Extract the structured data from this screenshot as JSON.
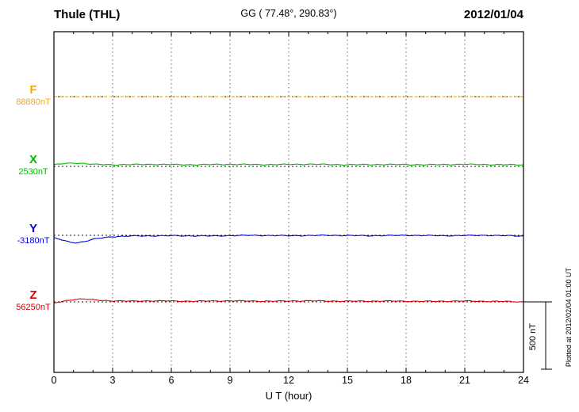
{
  "header": {
    "station": "Thule (THL)",
    "coordinates": "GG ( 77.48°, 290.83°)",
    "date": "2012/01/04"
  },
  "axis": {
    "xlabel": "U T (hour)"
  },
  "scale_bar": {
    "label": "500 nT"
  },
  "plot_note": "Plotted at 2012/02/04 01:00 UT",
  "chart_data": {
    "type": "line",
    "title": "Thule (THL) magnetogram 2012/01/04",
    "xlabel": "U T (hour)",
    "x_range": [
      0,
      24
    ],
    "x_ticks": [
      0,
      3,
      6,
      9,
      12,
      15,
      18,
      21,
      24
    ],
    "grid": "vertical dotted every 3 hours",
    "scale_bar_nT": 500,
    "series": [
      {
        "name": "F",
        "baseline_label": "88880nT",
        "baseline_nT": 88880,
        "color": "#FFA500",
        "line_style": "dashed",
        "noise_nT": 1,
        "points": [
          [
            0,
            0
          ],
          [
            12,
            0
          ],
          [
            24,
            0
          ]
        ]
      },
      {
        "name": "X",
        "baseline_label": "2530nT",
        "baseline_nT": 2530,
        "color": "#00BB00",
        "line_style": "solid",
        "noise_nT": 4,
        "points": [
          [
            0,
            12
          ],
          [
            0.5,
            20
          ],
          [
            1,
            25
          ],
          [
            1.5,
            22
          ],
          [
            2,
            15
          ],
          [
            3,
            12
          ],
          [
            5,
            15
          ],
          [
            7,
            12
          ],
          [
            9,
            15
          ],
          [
            11,
            13
          ],
          [
            13,
            16
          ],
          [
            15,
            12
          ],
          [
            17,
            14
          ],
          [
            19,
            12
          ],
          [
            21,
            15
          ],
          [
            23,
            12
          ],
          [
            24,
            12
          ]
        ]
      },
      {
        "name": "Y",
        "baseline_label": "-3180nT",
        "baseline_nT": -3180,
        "color": "#0000DD",
        "line_style": "solid",
        "noise_nT": 4,
        "points": [
          [
            0,
            -20
          ],
          [
            0.3,
            -30
          ],
          [
            0.8,
            -50
          ],
          [
            1.2,
            -55
          ],
          [
            1.6,
            -45
          ],
          [
            2,
            -30
          ],
          [
            2.5,
            -18
          ],
          [
            3,
            -10
          ],
          [
            4,
            -5
          ],
          [
            6,
            -3
          ],
          [
            8,
            -5
          ],
          [
            10,
            0
          ],
          [
            12,
            -3
          ],
          [
            14,
            0
          ],
          [
            16,
            -3
          ],
          [
            18,
            0
          ],
          [
            20,
            -3
          ],
          [
            22,
            0
          ],
          [
            24,
            -5
          ]
        ]
      },
      {
        "name": "Z",
        "baseline_label": "56250nT",
        "baseline_nT": 56250,
        "color": "#DD0000",
        "line_style": "solid",
        "noise_nT": 4,
        "points": [
          [
            0,
            -10
          ],
          [
            0.5,
            5
          ],
          [
            1,
            18
          ],
          [
            1.5,
            22
          ],
          [
            2,
            15
          ],
          [
            2.5,
            10
          ],
          [
            3,
            8
          ],
          [
            4,
            5
          ],
          [
            5,
            8
          ],
          [
            7,
            5
          ],
          [
            9,
            8
          ],
          [
            11,
            5
          ],
          [
            13,
            8
          ],
          [
            15,
            5
          ],
          [
            17,
            6
          ],
          [
            19,
            4
          ],
          [
            21,
            6
          ],
          [
            23,
            3
          ],
          [
            24,
            0
          ]
        ]
      }
    ]
  }
}
